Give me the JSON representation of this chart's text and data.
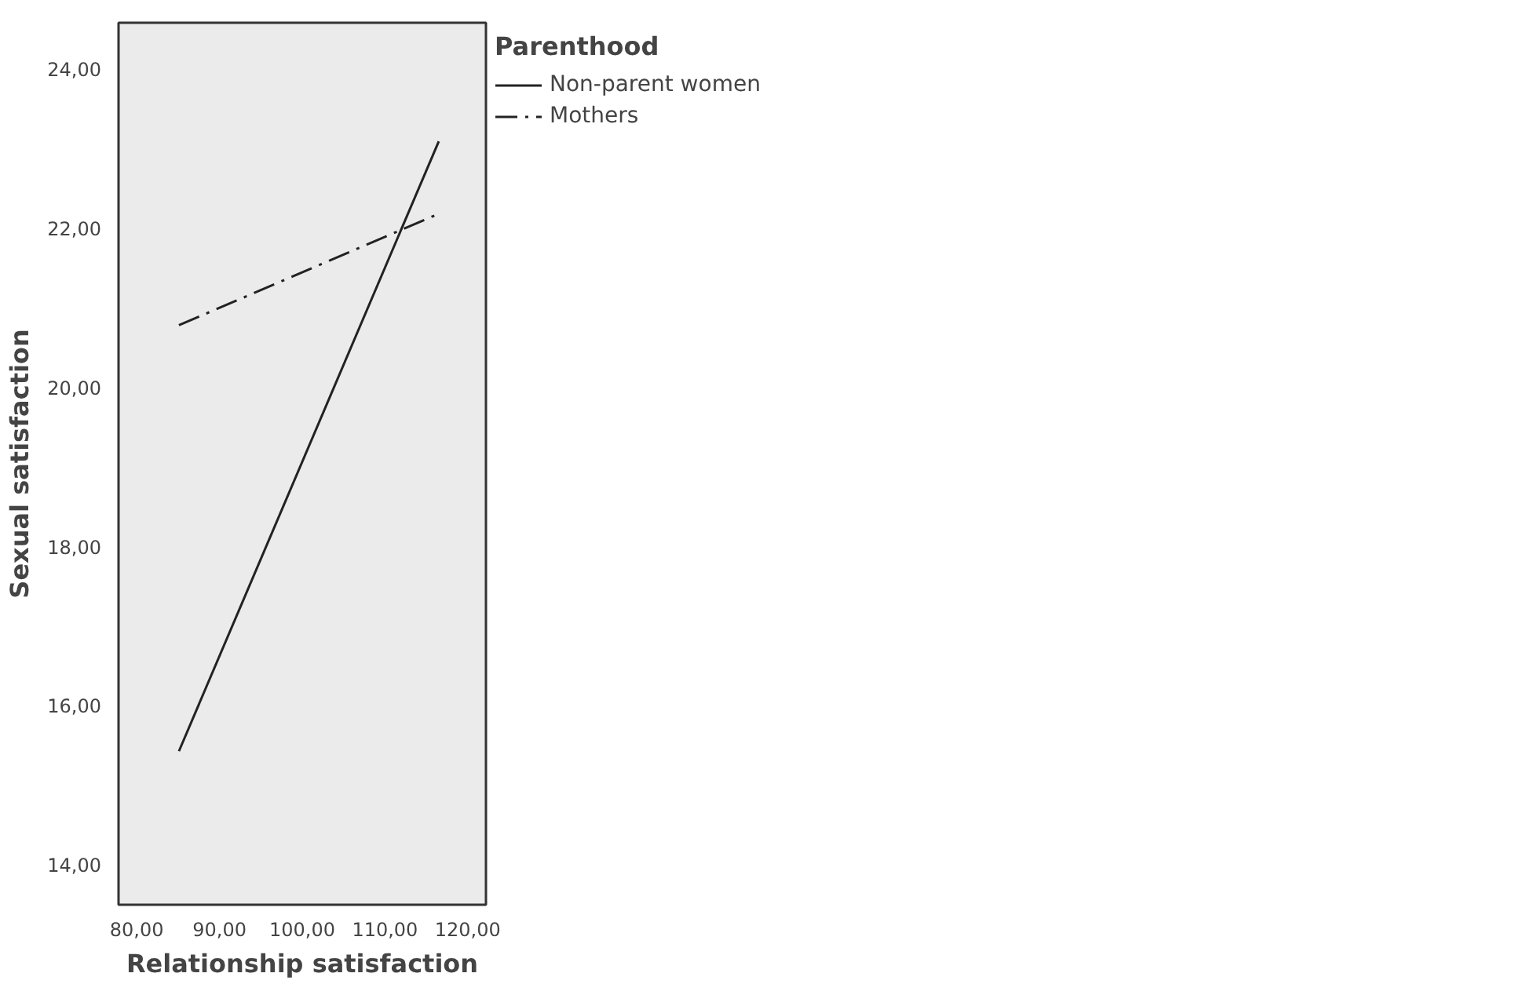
{
  "chart_data": {
    "type": "line",
    "xlabel": "Relationship satisfaction",
    "ylabel": "Sexual satisfaction",
    "legend_title": "Parenthood",
    "x": [
      85.1,
      116.5
    ],
    "series": [
      {
        "name": "Non-parent women",
        "color": "#222222",
        "values": [
          15.43,
          23.09
        ],
        "line_style": "solid"
      },
      {
        "name": "Mothers",
        "color": "#222222",
        "values": [
          20.78,
          22.18
        ],
        "line_style": "dashdot"
      }
    ],
    "xlim": [
      77.8,
      122.2
    ],
    "ylim": [
      13.5,
      24.58
    ],
    "xticks": [
      {
        "value": 80,
        "label": "80,00"
      },
      {
        "value": 90,
        "label": "90,00"
      },
      {
        "value": 100,
        "label": "100,00"
      },
      {
        "value": 110,
        "label": "110,00"
      },
      {
        "value": 120,
        "label": "120,00"
      }
    ],
    "yticks": [
      {
        "value": 14,
        "label": "14,00"
      },
      {
        "value": 16,
        "label": "16,00"
      },
      {
        "value": 18,
        "label": "18,00"
      },
      {
        "value": 20,
        "label": "20,00"
      },
      {
        "value": 22,
        "label": "22,00"
      },
      {
        "value": 24,
        "label": "24,00"
      }
    ],
    "grid": false,
    "legend": "top right"
  }
}
